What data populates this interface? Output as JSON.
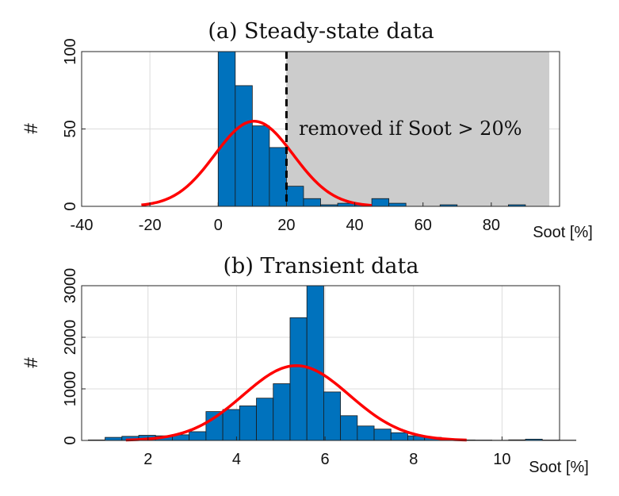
{
  "chart_data": [
    {
      "type": "bar",
      "title": "(a) Steady-state data",
      "xlabel": "Soot [%]",
      "ylabel": "#",
      "xlim": [
        -40,
        100
      ],
      "ylim": [
        0,
        100
      ],
      "xticks": [
        -40,
        -20,
        0,
        20,
        40,
        60,
        80
      ],
      "yticks": [
        0,
        50,
        100
      ],
      "grid": true,
      "bin_width": 5,
      "bin_starts": [
        0,
        5,
        10,
        15,
        20,
        25,
        30,
        35,
        40,
        45,
        50,
        55,
        60,
        65,
        70,
        75,
        80,
        85
      ],
      "values": [
        100,
        78,
        52,
        38,
        13,
        5,
        1,
        2,
        1,
        5,
        2,
        0,
        0,
        1,
        0,
        0,
        0,
        1
      ],
      "fit_curve": {
        "name": "normal fit",
        "mu": 10.5,
        "sigma": 11.5,
        "peak": 55,
        "x_range": [
          -22.5,
          45
        ]
      },
      "threshold_x": 20,
      "shaded_region": [
        20,
        97
      ],
      "annotation": "removed if Soot > 20%",
      "colors": {
        "bars": "#0072bd",
        "fit": "#ff0000",
        "shade": "#cccccc"
      }
    },
    {
      "type": "bar",
      "title": "(b) Transient data",
      "xlabel": "Soot [%]",
      "ylabel": "#",
      "xlim": [
        0.5,
        11.3
      ],
      "ylim": [
        0,
        3000
      ],
      "xticks": [
        2,
        4,
        6,
        8,
        10
      ],
      "yticks": [
        0,
        1000,
        2000,
        3000
      ],
      "grid": true,
      "bin_width": 0.38,
      "bin_starts": [
        0.65,
        1.03,
        1.41,
        1.79,
        2.17,
        2.55,
        2.93,
        3.31,
        3.69,
        4.07,
        4.45,
        4.83,
        5.21,
        5.59,
        5.97,
        6.35,
        6.73,
        7.11,
        7.49,
        7.87,
        8.25,
        8.63,
        9.01,
        9.39,
        9.77,
        10.15,
        10.53,
        10.91,
        11.29
      ],
      "values": [
        10,
        60,
        80,
        100,
        90,
        110,
        170,
        560,
        600,
        670,
        820,
        1100,
        2380,
        3000,
        940,
        480,
        280,
        220,
        150,
        90,
        60,
        30,
        10,
        8,
        5,
        12,
        25,
        8,
        6
      ],
      "fit_curve": {
        "name": "normal fit",
        "mu": 5.35,
        "sigma": 1.2,
        "peak": 1450,
        "x_range": [
          1.5,
          9.2
        ]
      },
      "colors": {
        "bars": "#0072bd",
        "fit": "#ff0000"
      }
    }
  ]
}
